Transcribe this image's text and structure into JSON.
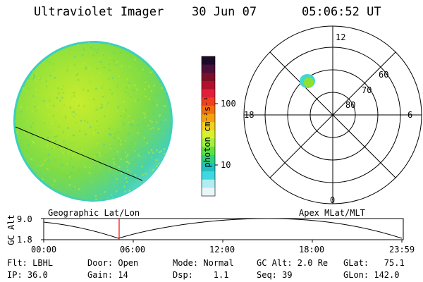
{
  "header": {
    "instrument": "Ultraviolet Imager",
    "date": "30 Jun 07",
    "time": "05:06:52 UT"
  },
  "colorbar": {
    "label": "photon cm⁻²s⁻¹",
    "ticks": [
      "100",
      "10"
    ],
    "colors": [
      "#1b0a2a",
      "#4a0f3a",
      "#7a0f2a",
      "#b0102a",
      "#e0203a",
      "#f04020",
      "#f07010",
      "#f4a010",
      "#f0d020",
      "#d8f030",
      "#a0f040",
      "#60e040",
      "#30d080",
      "#20c0c0",
      "#40d8e0",
      "#b0ecf0",
      "#e8f6f8"
    ]
  },
  "polar": {
    "labels": {
      "top": "12",
      "bottom": "0",
      "left": "18",
      "right": "6"
    },
    "lat_labels": [
      "60",
      "70",
      "80"
    ]
  },
  "timeline": {
    "left_title": "Geographic Lat/Lon",
    "right_title": "Apex MLat/MLT",
    "ylabel": "GC Alt",
    "ytick_top": "9.0",
    "ytick_bottom": "1.8",
    "xticks": [
      "00:00",
      "06:00",
      "12:00",
      "18:00",
      "23:59"
    ]
  },
  "footer": {
    "filter": "Flt: LBHL",
    "ip": "IP: 36.0",
    "door": "Door: Open",
    "gain": "Gain: 14",
    "mode": "Mode: Normal",
    "dsp": "Dsp:    1.1",
    "gc_alt": "GC Alt: 2.0 Re",
    "seq": "Seq: 39",
    "glat": "GLat:   75.1",
    "glon": "GLon: 142.0"
  },
  "colors": {
    "disk_main": "#8ee03a",
    "disk_edge": "#38d8c8",
    "marker": "#ff0000"
  }
}
